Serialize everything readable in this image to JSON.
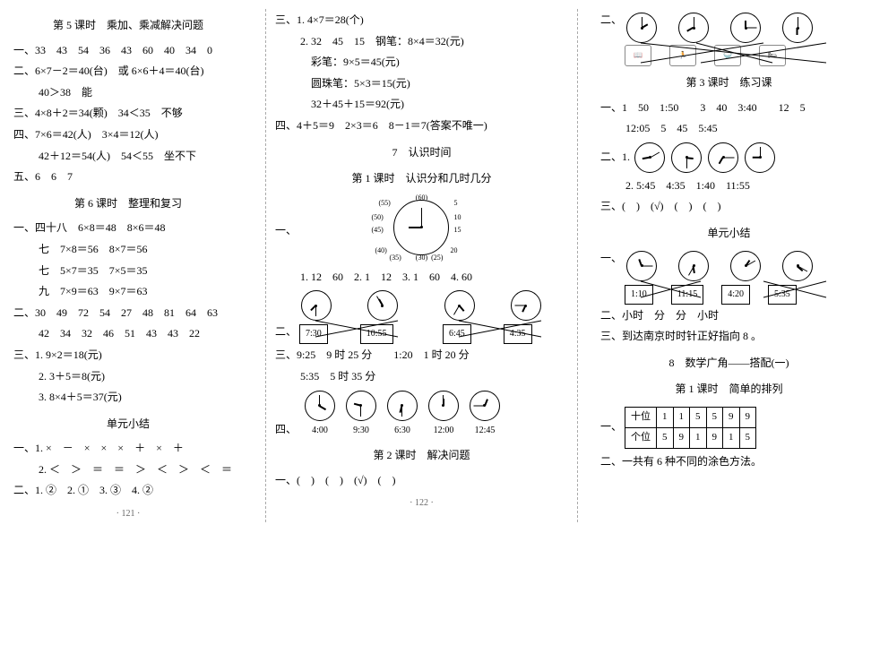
{
  "col1": {
    "lesson5_title": "第 5 课时　乘加、乘减解决问题",
    "l1": "一、33　43　54　36　43　60　40　34　0",
    "l2a": "二、6×7－2＝40(台)　或 6×6＋4＝40(台)",
    "l2b": "40＞38　能",
    "l3": "三、4×8＋2＝34(颗)　34＜35　不够",
    "l4a": "四、7×6＝42(人)　3×4＝12(人)",
    "l4b": "42＋12＝54(人)　54＜55　坐不下",
    "l5": "五、6　6　7",
    "lesson6_title": "第 6 课时　整理和复习",
    "p1a": "一、四十八　6×8＝48　8×6＝48",
    "p1b": "七　7×8＝56　8×7＝56",
    "p1c": "七　5×7＝35　7×5＝35",
    "p1d": "九　7×9＝63　9×7＝63",
    "p2a": "二、30　49　72　54　27　48　81　64　63",
    "p2b": "42　34　32　46　51　43　43　22",
    "p3a": "三、1. 9×2＝18(元)",
    "p3b": "2. 3＋5＝8(元)",
    "p3c": "3. 8×4＋5＝37(元)",
    "unit_sum": "单元小结",
    "u1a": "一、1. ×　－　×　×　×　＋　×　＋",
    "u1b": "2. ＜　＞　＝　＝　＞　＜　＞　＜　＝",
    "u2": "二、1. ②　2. ①　3. ③　4. ②",
    "footer": "· 121 ·"
  },
  "col2": {
    "l3_1": "三、1. 4×7＝28(个)",
    "l3_2a": "2. 32　45　15　钢笔：8×4＝32(元)",
    "l3_2b": "彩笔：9×5＝45(元)",
    "l3_2c": "圆珠笔：5×3＝15(元)",
    "l3_2d": "32＋45＋15＝92(元)",
    "l4": "四、4＋5＝9　2×3＝6　8－1＝7(答案不唯一)",
    "unit7": "7　认识时间",
    "lesson1_title": "第 1 课时　认识分和几时几分",
    "bigclock_labels": [
      "(60)",
      "5",
      "10",
      "15",
      "20",
      "(25)",
      "(30)",
      "(35)",
      "(40)",
      "(45)",
      "(50)",
      "(55)"
    ],
    "q1": "1. 12　60　2. 1　12　3. 1　60　4. 60",
    "q2_times": [
      "7:30",
      "10:55",
      "6:45",
      "4:35"
    ],
    "q3a": "三、9:25　9 时 25 分　　1:20　1 时 20 分",
    "q3b": "5:35　5 时 35 分",
    "q4_label": "四、",
    "q4_times": [
      "4:00",
      "9:30",
      "6:30",
      "12:00",
      "12:45"
    ],
    "lesson2_title": "第 2 课时　解决问题",
    "l1": "一、(　)　(　)　(√)　(　)",
    "footer": "· 122 ·"
  },
  "col3": {
    "sec2_label": "二、",
    "lesson3_title": "第 3 课时　练习课",
    "l1a": "一、1　50　1:50　　3　40　3:40　　12　5",
    "l1b": "12:05　5　45　5:45",
    "l2_1": "二、1.",
    "l2_2": "2. 5:45　4:35　1:40　11:55",
    "l3": "三、(　)　(√)　(　)　(　)",
    "unit_sum": "单元小结",
    "us1_label": "一、",
    "us1_times": [
      "1:10",
      "11:15",
      "4:20",
      "5:35"
    ],
    "us2": "二、小时　分　分　小时",
    "us3": "三、到达南京时时针正好指向 8 。",
    "unit8": "8　数学广角——搭配(一)",
    "lesson1_title": "第 1 课时　简单的排列",
    "table_header": "一、",
    "table": {
      "r1": [
        "十位",
        "1",
        "1",
        "5",
        "5",
        "9",
        "9"
      ],
      "r2": [
        "个位",
        "5",
        "9",
        "1",
        "9",
        "1",
        "5"
      ]
    },
    "l2b": "二、一共有 6 种不同的涂色方法。",
    "footer": " "
  },
  "clockStyles": {
    "note": "hour/minute hand rotations in degrees for each clock rendered"
  }
}
